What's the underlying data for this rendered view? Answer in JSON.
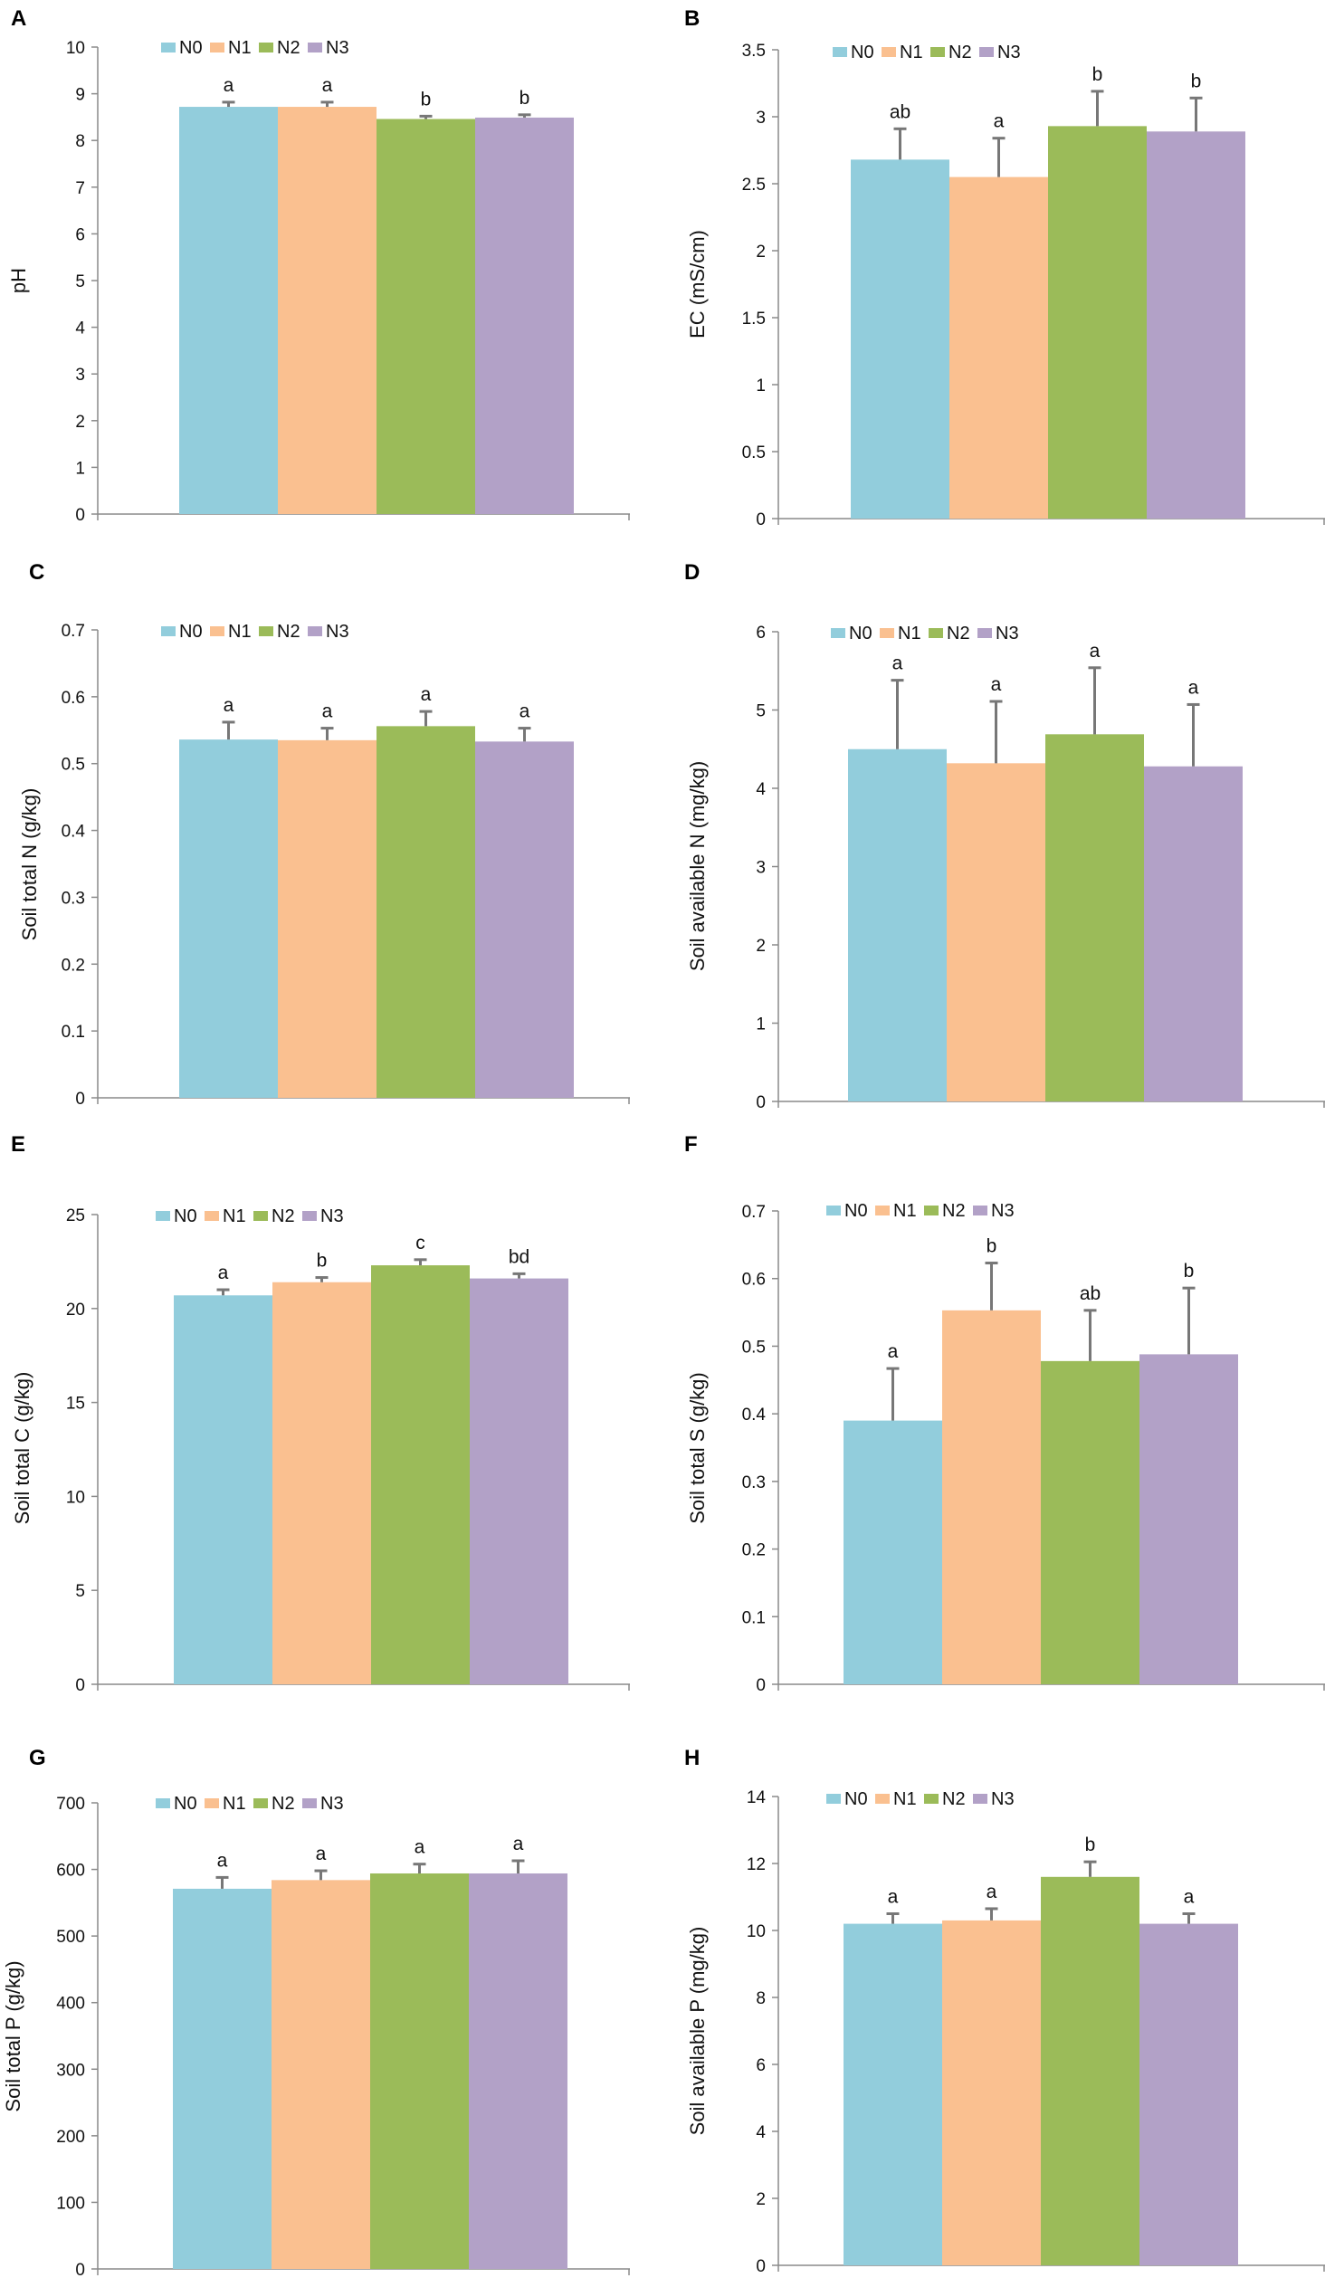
{
  "colors": {
    "N0": "#92cddc",
    "N1": "#fac090",
    "N2": "#9bbb59",
    "N3": "#b2a1c7"
  },
  "chart_data": [
    {
      "type": "bar",
      "panel": "A",
      "ylabel": "pH",
      "ylim": [
        0,
        10
      ],
      "ticks": [
        "0",
        "1",
        "2",
        "3",
        "4",
        "5",
        "6",
        "7",
        "8",
        "9",
        "10"
      ],
      "legend": [
        "N0",
        "N1",
        "N2",
        "N3"
      ],
      "values": [
        8.72,
        8.72,
        8.46,
        8.49
      ],
      "errors": [
        0.1,
        0.1,
        0.06,
        0.06
      ],
      "labels": [
        "a",
        "a",
        "b",
        "b"
      ]
    },
    {
      "type": "bar",
      "panel": "B",
      "ylabel": "EC (mS/cm)",
      "ylim": [
        0,
        3.5
      ],
      "ticks": [
        "0",
        "0.5",
        "1",
        "1.5",
        "2",
        "2.5",
        "3",
        "3.5"
      ],
      "legend": [
        "N0",
        "N1",
        "N2",
        "N3"
      ],
      "values": [
        2.68,
        2.55,
        2.93,
        2.89
      ],
      "errors": [
        0.23,
        0.29,
        0.26,
        0.25
      ],
      "labels": [
        "ab",
        "a",
        "b",
        "b"
      ]
    },
    {
      "type": "bar",
      "panel": "C",
      "ylabel": "Soil total N (g/kg)",
      "ylim": [
        0,
        0.7
      ],
      "ticks": [
        "0",
        "0.1",
        "0.2",
        "0.3",
        "0.4",
        "0.5",
        "0.6",
        "0.7"
      ],
      "legend": [
        "N0",
        "N1",
        "N2",
        "N3"
      ],
      "values": [
        0.536,
        0.535,
        0.556,
        0.533
      ],
      "errors": [
        0.026,
        0.018,
        0.022,
        0.02
      ],
      "labels": [
        "a",
        "a",
        "a",
        "a"
      ]
    },
    {
      "type": "bar",
      "panel": "D",
      "ylabel": "Soil available N (mg/kg)",
      "ylim": [
        0,
        6
      ],
      "ticks": [
        "0",
        "1",
        "2",
        "3",
        "4",
        "5",
        "6"
      ],
      "legend": [
        "N0",
        "N1",
        "N2",
        "N3"
      ],
      "values": [
        4.5,
        4.32,
        4.69,
        4.28
      ],
      "errors": [
        0.88,
        0.79,
        0.85,
        0.79
      ],
      "labels": [
        "a",
        "a",
        "a",
        "a"
      ]
    },
    {
      "type": "bar",
      "panel": "E",
      "ylabel": "Soil total C (g/kg)",
      "ylim": [
        0,
        25
      ],
      "ticks": [
        "0",
        "5",
        "10",
        "15",
        "20",
        "25"
      ],
      "legend": [
        "N0",
        "N1",
        "N2",
        "N3"
      ],
      "values": [
        20.7,
        21.4,
        22.3,
        21.6
      ],
      "errors": [
        0.3,
        0.25,
        0.3,
        0.25
      ],
      "labels": [
        "a",
        "b",
        "c",
        "bd"
      ]
    },
    {
      "type": "bar",
      "panel": "F",
      "ylabel": "Soil total S (g/kg)",
      "ylim": [
        0,
        0.7
      ],
      "ticks": [
        "0",
        "0.1",
        "0.2",
        "0.3",
        "0.4",
        "0.5",
        "0.6",
        "0.7"
      ],
      "legend": [
        "N0",
        "N1",
        "N2",
        "N3"
      ],
      "values": [
        0.39,
        0.553,
        0.478,
        0.488
      ],
      "errors": [
        0.077,
        0.07,
        0.075,
        0.098
      ],
      "labels": [
        "a",
        "b",
        "ab",
        "b"
      ]
    },
    {
      "type": "bar",
      "panel": "G",
      "ylabel": "Soil total P (g/kg)",
      "ylim": [
        0,
        700
      ],
      "ticks": [
        "0",
        "100",
        "200",
        "300",
        "400",
        "500",
        "600",
        "700"
      ],
      "legend": [
        "N0",
        "N1",
        "N2",
        "N3"
      ],
      "values": [
        571,
        584,
        594,
        594
      ],
      "errors": [
        17,
        14,
        14,
        19
      ],
      "labels": [
        "a",
        "a",
        "a",
        "a"
      ]
    },
    {
      "type": "bar",
      "panel": "H",
      "ylabel": "Soil available P (mg/kg)",
      "ylim": [
        0,
        14
      ],
      "ticks": [
        "0",
        "2",
        "4",
        "6",
        "8",
        "10",
        "12",
        "14"
      ],
      "legend": [
        "N0",
        "N1",
        "N2",
        "N3"
      ],
      "values": [
        10.2,
        10.3,
        11.6,
        10.2
      ],
      "errors": [
        0.3,
        0.35,
        0.45,
        0.3
      ],
      "labels": [
        "a",
        "a",
        "b",
        "a"
      ]
    }
  ]
}
